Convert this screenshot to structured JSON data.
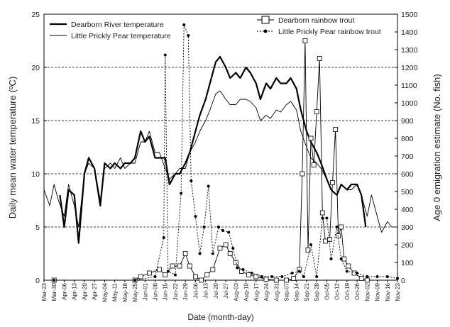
{
  "chart_data": {
    "type": "line",
    "xlabel": "Date (month-day)",
    "ylabel": "Daily mean water temperature (ºC)",
    "y2label": "Age 0 emigration estimate (No. fish)",
    "xlim": [
      "Mar-23",
      "Nov-23"
    ],
    "xticks": [
      "Mar-23",
      "Mar-30",
      "Apr-06",
      "Apr-13",
      "Apr-20",
      "Apr-27",
      "May-04",
      "May-11",
      "May-18",
      "May-25",
      "Jun-01",
      "Jun-08",
      "Jun-15",
      "Jun-22",
      "Jun-29",
      "Jul-06",
      "Jul-13",
      "Jul-20",
      "Jul-27",
      "Aug-03",
      "Aug-10",
      "Aug-17",
      "Aug-24",
      "Aug-31",
      "Sep-07",
      "Sep-14",
      "Sep-21",
      "Sep-28",
      "Oct-05",
      "Oct-12",
      "Oct-19",
      "Oct-26",
      "Nov-02",
      "Nov-09",
      "Nov-16",
      "Nov-23"
    ],
    "ylim": [
      0,
      25
    ],
    "yticks": [
      0,
      5,
      10,
      15,
      20,
      25
    ],
    "y2lim": [
      0,
      1500
    ],
    "y2ticks": [
      0,
      100,
      200,
      300,
      400,
      500,
      600,
      700,
      800,
      900,
      1000,
      1100,
      1200,
      1300,
      1400,
      1500
    ],
    "grid": true,
    "series": [
      {
        "name": "Dearborn River temperature",
        "color": "#000000",
        "line_width": 2.2,
        "axis": "y",
        "x": [
          "Apr-03",
          "Apr-06",
          "Apr-09",
          "Apr-13",
          "Apr-16",
          "Apr-20",
          "Apr-23",
          "Apr-27",
          "May-01",
          "May-04",
          "May-08",
          "May-11",
          "May-15",
          "May-18",
          "May-22",
          "May-25",
          "May-29",
          "Jun-01",
          "Jun-04",
          "Jun-08",
          "Jun-11",
          "Jun-15",
          "Jun-18",
          "Jun-22",
          "Jun-25",
          "Jun-29",
          "Jul-02",
          "Jul-06",
          "Jul-09",
          "Jul-13",
          "Jul-16",
          "Jul-20",
          "Jul-23",
          "Jul-27",
          "Jul-30",
          "Aug-03",
          "Aug-06",
          "Aug-10",
          "Aug-13",
          "Aug-17",
          "Aug-20",
          "Aug-24",
          "Aug-27",
          "Aug-31",
          "Sep-03",
          "Sep-07",
          "Sep-10",
          "Sep-14",
          "Sep-17",
          "Sep-21",
          "Sep-24",
          "Sep-28",
          "Oct-01",
          "Oct-05",
          "Oct-08",
          "Oct-12",
          "Oct-15",
          "Oct-19",
          "Oct-22",
          "Oct-26",
          "Oct-29",
          "Nov-01"
        ],
        "values": [
          8,
          5,
          8.5,
          8,
          3.5,
          10,
          11.5,
          10.5,
          7,
          11,
          10.5,
          11,
          10.5,
          11,
          11,
          11.5,
          14,
          13,
          13.5,
          11.5,
          11.5,
          11.5,
          9,
          10,
          10,
          11,
          12,
          14,
          15.5,
          17,
          18.5,
          20.5,
          21,
          20,
          19,
          19.5,
          19,
          20,
          19.5,
          18.5,
          17,
          18.5,
          18,
          19,
          18.5,
          18.5,
          19,
          18,
          16,
          14,
          13,
          12,
          11,
          9.5,
          8.5,
          8,
          9,
          8.5,
          9,
          9,
          8,
          5
        ]
      },
      {
        "name": "Little Prickly Pear temperature",
        "color": "#000000",
        "line_width": 0.9,
        "axis": "y",
        "x": [
          "Mar-23",
          "Mar-27",
          "Mar-30",
          "Apr-02",
          "Apr-06",
          "Apr-09",
          "Apr-13",
          "Apr-16",
          "Apr-20",
          "Apr-23",
          "Apr-27",
          "May-01",
          "May-04",
          "May-08",
          "May-11",
          "May-15",
          "May-18",
          "May-22",
          "May-25",
          "May-29",
          "Jun-01",
          "Jun-04",
          "Jun-08",
          "Jun-11",
          "Jun-15",
          "Jun-18",
          "Jun-22",
          "Jun-25",
          "Jun-29",
          "Jul-02",
          "Jul-06",
          "Jul-09",
          "Jul-13",
          "Jul-16",
          "Jul-20",
          "Jul-23",
          "Jul-27",
          "Jul-30",
          "Aug-03",
          "Aug-06",
          "Aug-10",
          "Aug-13",
          "Aug-17",
          "Aug-20",
          "Aug-24",
          "Aug-27",
          "Aug-31",
          "Sep-03",
          "Sep-07",
          "Sep-10",
          "Sep-14",
          "Sep-17",
          "Sep-21",
          "Sep-24",
          "Sep-28",
          "Oct-01",
          "Oct-05",
          "Oct-08",
          "Oct-12",
          "Oct-15",
          "Oct-19",
          "Oct-22",
          "Oct-26",
          "Oct-29",
          "Nov-02",
          "Nov-05",
          "Nov-09",
          "Nov-12",
          "Nov-16",
          "Nov-19",
          "Nov-23"
        ],
        "values": [
          8.5,
          7,
          9,
          7.5,
          6,
          9,
          7,
          5,
          10,
          11,
          10.5,
          7.5,
          10.5,
          11,
          10.5,
          11.5,
          10.5,
          11,
          11,
          13,
          13,
          14,
          12,
          12,
          10.5,
          9.5,
          10,
          10.5,
          10.5,
          12,
          13,
          14,
          15,
          16,
          17.5,
          17.8,
          17,
          16.5,
          16.5,
          17,
          17,
          16.8,
          16.2,
          15,
          15.5,
          15.2,
          16,
          15.8,
          16.5,
          16.8,
          16,
          14,
          12.5,
          11.5,
          11,
          10.5,
          9.5,
          8.5,
          8,
          9,
          8.5,
          8.5,
          9,
          8,
          6,
          8,
          6,
          4.5,
          5.5,
          5,
          5
        ]
      },
      {
        "name": "Dearborn rainbow trout",
        "color": "#000000",
        "line_width": 0.9,
        "axis": "y2",
        "marker": "square",
        "x": [
          "Mar-30",
          "May-25",
          "May-29",
          "Jun-04",
          "Jun-11",
          "Jun-15",
          "Jun-20",
          "Jun-25",
          "Jun-29",
          "Jul-02",
          "Jul-06",
          "Jul-10",
          "Jul-14",
          "Jul-18",
          "Jul-23",
          "Jul-27",
          "Jul-30",
          "Aug-03",
          "Aug-07",
          "Aug-12",
          "Aug-17",
          "Aug-24",
          "Aug-31",
          "Sep-07",
          "Sep-12",
          "Sep-16",
          "Sep-18",
          "Sep-20",
          "Sep-22",
          "Sep-24",
          "Sep-26",
          "Sep-28",
          "Sep-30",
          "Oct-02",
          "Oct-04",
          "Oct-07",
          "Oct-09",
          "Oct-11",
          "Oct-13",
          "Oct-15",
          "Oct-17",
          "Oct-20",
          "Oct-24",
          "Oct-29",
          "Nov-02"
        ],
        "values": [
          0,
          0,
          20,
          40,
          60,
          30,
          80,
          80,
          150,
          80,
          20,
          0,
          30,
          60,
          180,
          200,
          150,
          100,
          50,
          30,
          20,
          5,
          0,
          0,
          10,
          60,
          600,
          1350,
          170,
          800,
          650,
          950,
          1250,
          380,
          220,
          230,
          550,
          850,
          250,
          300,
          120,
          80,
          40,
          10,
          0
        ]
      },
      {
        "name": "Little Prickly Pear rainbow trout",
        "color": "#000000",
        "line_width": 0.9,
        "axis": "y2",
        "marker": "circle",
        "dash": true,
        "x": [
          "Mar-30",
          "May-25",
          "Jun-08",
          "Jun-14",
          "Jun-15",
          "Jun-17",
          "Jun-22",
          "Jun-26",
          "Jun-28",
          "Jul-01",
          "Jul-03",
          "Jul-06",
          "Jul-09",
          "Jul-12",
          "Jul-15",
          "Jul-18",
          "Jul-22",
          "Jul-25",
          "Jul-29",
          "Aug-01",
          "Aug-04",
          "Aug-08",
          "Aug-14",
          "Aug-21",
          "Aug-28",
          "Sep-04",
          "Sep-11",
          "Sep-16",
          "Sep-19",
          "Sep-24",
          "Sep-28",
          "Oct-02",
          "Oct-05",
          "Oct-08",
          "Oct-12",
          "Oct-15",
          "Oct-19",
          "Oct-26",
          "Nov-02",
          "Nov-09",
          "Nov-16",
          "Nov-23"
        ],
        "values": [
          0,
          0,
          20,
          240,
          1270,
          50,
          30,
          490,
          1440,
          1380,
          560,
          360,
          150,
          300,
          530,
          150,
          300,
          280,
          270,
          180,
          70,
          60,
          40,
          20,
          20,
          20,
          40,
          50,
          20,
          200,
          20,
          350,
          350,
          120,
          300,
          120,
          50,
          40,
          20,
          20,
          20,
          10
        ]
      }
    ]
  }
}
